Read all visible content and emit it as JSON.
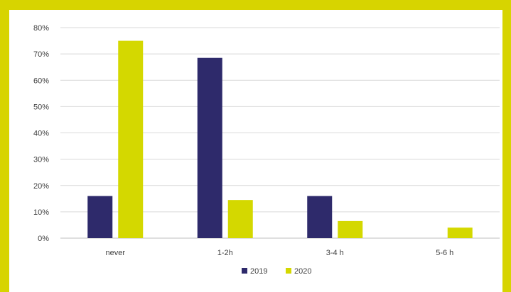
{
  "chart_data": {
    "type": "bar",
    "categories": [
      "never",
      "1-2h",
      "3-4 h",
      "5-6 h"
    ],
    "series": [
      {
        "name": "2019",
        "color": "#2e2a6b",
        "values": [
          16,
          68.5,
          16,
          null
        ]
      },
      {
        "name": "2020",
        "color": "#d4d800",
        "values": [
          75,
          14.5,
          6.5,
          4
        ]
      }
    ],
    "ylim": [
      0,
      80
    ],
    "yticks": [
      "0%",
      "10%",
      "20%",
      "30%",
      "40%",
      "50%",
      "60%",
      "70%",
      "80%"
    ],
    "y_unit": "%",
    "grid": true,
    "legend_position": "bottom"
  },
  "colors": {
    "frame": "#d7d400",
    "background": "#ffffff",
    "grid": "#d9d9d9"
  }
}
